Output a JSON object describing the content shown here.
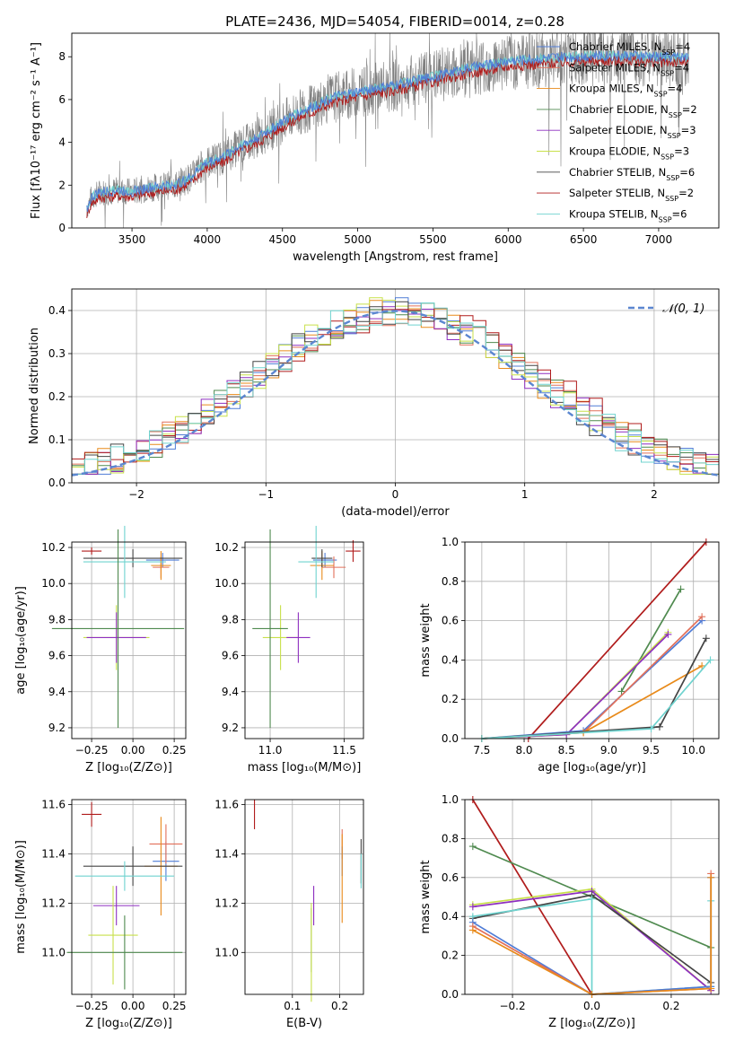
{
  "figure": {
    "title": "PLATE=2436, MJD=54054, FIBERID=0014, z=0.28"
  },
  "colors": {
    "Chabrier MILES": "#4f7cd6",
    "Salpeter MILES": "#e2705a",
    "Kroupa MILES": "#e88a1a",
    "Chabrier ELODIE": "#4f8a4f",
    "Salpeter ELODIE": "#8e2fc0",
    "Kroupa ELODIE": "#c8e04a",
    "Chabrier STELIB": "#444444",
    "Salpeter STELIB": "#b01c1c",
    "Kroupa STELIB": "#6fd3cf",
    "data": "#808080",
    "normal": "#5b86d0"
  },
  "chart_data": [
    {
      "id": "spectrum",
      "type": "line",
      "title": "PLATE=2436, MJD=54054, FIBERID=0014, z=0.28",
      "xlabel": "wavelength [Angstrom, rest frame]",
      "ylabel": "Flux [fλ10⁻¹⁷ erg cm⁻² s⁻¹ A⁻¹]",
      "xlim": [
        3100,
        7400
      ],
      "ylim": [
        0,
        9.1
      ],
      "xticks": [
        3500,
        4000,
        4500,
        5000,
        5500,
        6000,
        6500,
        7000
      ],
      "yticks": [
        0,
        2,
        4,
        6,
        8
      ],
      "legend_position": "top-right",
      "legend": [
        "Chabrier MILES, N_SSP=4",
        "Salpeter MILES, N_SSP=4",
        "Kroupa MILES, N_SSP=4",
        "Chabrier ELODIE, N_SSP=2",
        "Salpeter ELODIE, N_SSP=3",
        "Kroupa ELODIE, N_SSP=3",
        "Chabrier STELIB, N_SSP=6",
        "Salpeter STELIB, N_SSP=2",
        "Kroupa STELIB, N_SSP=6"
      ],
      "model_continuum": [
        [
          3200,
          0.9
        ],
        [
          3230,
          1.4
        ],
        [
          3280,
          1.65
        ],
        [
          3400,
          1.75
        ],
        [
          3500,
          1.7
        ],
        [
          3600,
          1.85
        ],
        [
          3700,
          1.95
        ],
        [
          3800,
          2.05
        ],
        [
          3900,
          2.4
        ],
        [
          3950,
          2.8
        ],
        [
          4000,
          3.05
        ],
        [
          4100,
          3.3
        ],
        [
          4200,
          3.75
        ],
        [
          4300,
          4.1
        ],
        [
          4400,
          4.5
        ],
        [
          4500,
          4.95
        ],
        [
          4600,
          5.35
        ],
        [
          4700,
          5.65
        ],
        [
          4800,
          6.0
        ],
        [
          4900,
          6.2
        ],
        [
          5000,
          6.35
        ],
        [
          5100,
          6.5
        ],
        [
          5200,
          6.6
        ],
        [
          5300,
          6.75
        ],
        [
          5400,
          6.9
        ],
        [
          5500,
          7.05
        ],
        [
          5600,
          7.25
        ],
        [
          5700,
          7.4
        ],
        [
          5800,
          7.55
        ],
        [
          5900,
          7.65
        ],
        [
          6000,
          7.8
        ],
        [
          6200,
          7.9
        ],
        [
          6400,
          8.0
        ],
        [
          6600,
          8.05
        ],
        [
          6800,
          8.05
        ],
        [
          7000,
          8.0
        ],
        [
          7200,
          8.0
        ]
      ]
    },
    {
      "id": "residuals",
      "type": "line",
      "xlabel": "(data-model)/error",
      "ylabel": "Normed distribution",
      "xlim": [
        -2.5,
        2.5
      ],
      "ylim": [
        0,
        0.45
      ],
      "xticks": [
        -2,
        -1,
        0,
        1,
        2
      ],
      "yticks": [
        0.0,
        0.1,
        0.2,
        0.3,
        0.4
      ],
      "grid": true,
      "legend_position": "top-right",
      "legend": [
        "𝒩(0, 1)"
      ],
      "normal": {
        "mu": 0,
        "sigma": 1
      }
    },
    {
      "id": "age-vs-Z",
      "type": "scatter",
      "xlabel": "Z [log₁₀(Z/Z⊙)]",
      "ylabel": "age  [log₁₀(age/yr)]",
      "xlim": [
        -0.37,
        0.32
      ],
      "ylim": [
        9.14,
        10.23
      ],
      "xticks": [
        -0.25,
        0.0,
        0.25
      ],
      "yticks": [
        9.2,
        9.4,
        9.6,
        9.8,
        10.0,
        10.2
      ],
      "grid": true,
      "errorbars": [
        {
          "model": "Salpeter STELIB",
          "x": -0.25,
          "y": 10.18,
          "xerr": 0.06,
          "yerr": 0.02
        },
        {
          "model": "Chabrier MILES",
          "x": 0.18,
          "y": 10.13,
          "xerr": 0.1,
          "yerr": 0.04
        },
        {
          "model": "Salpeter MILES",
          "x": 0.17,
          "y": 10.09,
          "xerr": 0.05,
          "yerr": 0.06
        },
        {
          "model": "Kroupa MILES",
          "x": 0.17,
          "y": 10.1,
          "xerr": 0.06,
          "yerr": 0.08
        },
        {
          "model": "Chabrier STELIB",
          "x": 0.0,
          "y": 10.14,
          "xerr": 0.3,
          "yerr": 0.05
        },
        {
          "model": "Kroupa STELIB",
          "x": -0.05,
          "y": 10.12,
          "xerr": 0.25,
          "yerr": 0.2
        },
        {
          "model": "Kroupa ELODIE",
          "x": -0.1,
          "y": 9.7,
          "xerr": 0.2,
          "yerr": 0.18
        },
        {
          "model": "Salpeter ELODIE",
          "x": -0.1,
          "y": 9.7,
          "xerr": 0.18,
          "yerr": 0.14
        },
        {
          "model": "Chabrier ELODIE",
          "x": -0.09,
          "y": 9.75,
          "xerr": 0.4,
          "yerr": 0.55
        }
      ]
    },
    {
      "id": "age-vs-mass",
      "type": "scatter",
      "xlabel": "mass [log₁₀(M/M⊙)]",
      "xlim": [
        10.83,
        11.63
      ],
      "ylim": [
        9.14,
        10.23
      ],
      "xticks": [
        11.0,
        11.5
      ],
      "yticks": [
        9.2,
        9.4,
        9.6,
        9.8,
        10.0,
        10.2
      ],
      "grid": true,
      "errorbars": [
        {
          "model": "Salpeter STELIB",
          "x": 11.56,
          "y": 10.18,
          "xerr": 0.05,
          "yerr": 0.06
        },
        {
          "model": "Chabrier MILES",
          "x": 11.37,
          "y": 10.13,
          "xerr": 0.08,
          "yerr": 0.04
        },
        {
          "model": "Salpeter MILES",
          "x": 11.43,
          "y": 10.09,
          "xerr": 0.08,
          "yerr": 0.06
        },
        {
          "model": "Kroupa MILES",
          "x": 11.35,
          "y": 10.1,
          "xerr": 0.08,
          "yerr": 0.08
        },
        {
          "model": "Chabrier STELIB",
          "x": 11.35,
          "y": 10.14,
          "xerr": 0.07,
          "yerr": 0.05
        },
        {
          "model": "Kroupa STELIB",
          "x": 11.31,
          "y": 10.12,
          "xerr": 0.12,
          "yerr": 0.2
        },
        {
          "model": "Kroupa ELODIE",
          "x": 11.07,
          "y": 9.7,
          "xerr": 0.12,
          "yerr": 0.18
        },
        {
          "model": "Salpeter ELODIE",
          "x": 11.19,
          "y": 9.7,
          "xerr": 0.08,
          "yerr": 0.14
        },
        {
          "model": "Chabrier ELODIE",
          "x": 11.0,
          "y": 9.75,
          "xerr": 0.12,
          "yerr": 0.55
        }
      ]
    },
    {
      "id": "mass-weight-vs-age",
      "type": "line",
      "xlabel": "age  [log₁₀(age/yr)]",
      "ylabel": "mass weight",
      "xlim": [
        7.3,
        10.3
      ],
      "ylim": [
        0,
        1
      ],
      "xticks": [
        7.5,
        8.0,
        8.5,
        9.0,
        9.5,
        10.0
      ],
      "yticks": [
        0.0,
        0.2,
        0.4,
        0.6,
        0.8,
        1.0
      ],
      "grid": true,
      "series": [
        {
          "model": "Salpeter STELIB",
          "x": [
            8.05,
            10.15
          ],
          "y": [
            0.0,
            1.0
          ]
        },
        {
          "model": "Chabrier ELODIE",
          "x": [
            9.15,
            9.85
          ],
          "y": [
            0.24,
            0.76
          ]
        },
        {
          "model": "Kroupa ELODIE",
          "x": [
            7.5,
            8.5,
            9.7
          ],
          "y": [
            0.0,
            0.02,
            0.54
          ]
        },
        {
          "model": "Salpeter ELODIE",
          "x": [
            7.5,
            8.5,
            9.7
          ],
          "y": [
            0.0,
            0.02,
            0.53
          ]
        },
        {
          "model": "Chabrier MILES",
          "x": [
            7.5,
            8.7,
            10.1
          ],
          "y": [
            0.0,
            0.04,
            0.6
          ]
        },
        {
          "model": "Salpeter MILES",
          "x": [
            7.5,
            8.7,
            10.1
          ],
          "y": [
            0.0,
            0.03,
            0.62
          ]
        },
        {
          "model": "Kroupa MILES",
          "x": [
            7.5,
            8.7,
            10.1
          ],
          "y": [
            0.0,
            0.03,
            0.37
          ]
        },
        {
          "model": "Chabrier STELIB",
          "x": [
            7.5,
            9.6,
            10.15
          ],
          "y": [
            0.0,
            0.06,
            0.51
          ]
        },
        {
          "model": "Kroupa STELIB",
          "x": [
            7.5,
            9.5,
            10.2
          ],
          "y": [
            0.0,
            0.05,
            0.4
          ]
        }
      ]
    },
    {
      "id": "mass-vs-Z",
      "type": "scatter",
      "xlabel": "Z [log₁₀(Z/Z⊙)]",
      "ylabel": "mass [log₁₀(M/M⊙)]",
      "xlim": [
        -0.37,
        0.32
      ],
      "ylim": [
        10.83,
        11.62
      ],
      "xticks": [
        -0.25,
        0.0,
        0.25
      ],
      "yticks": [
        11.0,
        11.2,
        11.4,
        11.6
      ],
      "grid": true,
      "errorbars": [
        {
          "model": "Salpeter STELIB",
          "x": -0.25,
          "y": 11.56,
          "xerr": 0.06,
          "yerr": 0.05
        },
        {
          "model": "Chabrier MILES",
          "x": 0.2,
          "y": 11.37,
          "xerr": 0.08,
          "yerr": 0.08
        },
        {
          "model": "Salpeter MILES",
          "x": 0.2,
          "y": 11.44,
          "xerr": 0.1,
          "yerr": 0.08
        },
        {
          "model": "Kroupa MILES",
          "x": 0.17,
          "y": 11.35,
          "xerr": 0.1,
          "yerr": 0.2
        },
        {
          "model": "Chabrier STELIB",
          "x": 0.0,
          "y": 11.35,
          "xerr": 0.3,
          "yerr": 0.08
        },
        {
          "model": "Kroupa STELIB",
          "x": -0.05,
          "y": 11.31,
          "xerr": 0.3,
          "yerr": 0.06
        },
        {
          "model": "Salpeter ELODIE",
          "x": -0.1,
          "y": 11.19,
          "xerr": 0.14,
          "yerr": 0.08
        },
        {
          "model": "Kroupa ELODIE",
          "x": -0.12,
          "y": 11.07,
          "xerr": 0.15,
          "yerr": 0.2
        },
        {
          "model": "Chabrier ELODIE",
          "x": -0.05,
          "y": 11.0,
          "xerr": 0.35,
          "yerr": 0.15
        }
      ]
    },
    {
      "id": "mass-vs-EBV",
      "type": "scatter",
      "xlabel": "E(B-V)",
      "xlim": [
        0.0,
        0.25
      ],
      "ylim": [
        10.83,
        11.62
      ],
      "xticks": [
        0.1,
        0.2
      ],
      "yticks": [
        11.0,
        11.2,
        11.4,
        11.6
      ],
      "grid": true,
      "errorbars": [
        {
          "model": "Salpeter STELIB",
          "x": 0.02,
          "y": 11.56,
          "xerr": 0.0,
          "yerr": 0.06
        },
        {
          "model": "Salpeter MILES",
          "x": 0.205,
          "y": 11.44,
          "xerr": 0.0,
          "yerr": 0.06
        },
        {
          "model": "Chabrier MILES",
          "x": 0.205,
          "y": 11.37,
          "xerr": 0.0,
          "yerr": 0.06
        },
        {
          "model": "Kroupa MILES",
          "x": 0.205,
          "y": 11.3,
          "xerr": 0.0,
          "yerr": 0.18
        },
        {
          "model": "Chabrier STELIB",
          "x": 0.245,
          "y": 11.37,
          "xerr": 0.0,
          "yerr": 0.09
        },
        {
          "model": "Kroupa STELIB",
          "x": 0.245,
          "y": 11.33,
          "xerr": 0.0,
          "yerr": 0.07
        },
        {
          "model": "Salpeter ELODIE",
          "x": 0.145,
          "y": 11.19,
          "xerr": 0.0,
          "yerr": 0.08
        },
        {
          "model": "Chabrier ELODIE",
          "x": 0.14,
          "y": 11.05,
          "xerr": 0.0,
          "yerr": 0.13
        },
        {
          "model": "Kroupa ELODIE",
          "x": 0.14,
          "y": 11.0,
          "xerr": 0.0,
          "yerr": 0.2
        }
      ]
    },
    {
      "id": "mass-weight-vs-Z",
      "type": "line",
      "xlabel": "Z [log₁₀(Z/Z⊙)]",
      "ylabel": "mass weight",
      "xlim": [
        -0.32,
        0.32
      ],
      "ylim": [
        0,
        1
      ],
      "xticks": [
        -0.2,
        0.0,
        0.2
      ],
      "yticks": [
        0.0,
        0.2,
        0.4,
        0.6,
        0.8,
        1.0
      ],
      "grid": true,
      "series": [
        {
          "model": "Salpeter STELIB",
          "x": [
            -0.3,
            0.0
          ],
          "y": [
            1.0,
            0.0
          ]
        },
        {
          "model": "Chabrier ELODIE",
          "x": [
            -0.3,
            0.3
          ],
          "y": [
            0.76,
            0.24
          ]
        },
        {
          "model": "Kroupa ELODIE",
          "x": [
            -0.3,
            0.0,
            0.3
          ],
          "y": [
            0.46,
            0.54,
            0.02
          ]
        },
        {
          "model": "Salpeter ELODIE",
          "x": [
            -0.3,
            0.0,
            0.3
          ],
          "y": [
            0.45,
            0.53,
            0.02
          ]
        },
        {
          "model": "Chabrier STELIB",
          "x": [
            -0.3,
            0.0,
            0.3
          ],
          "y": [
            0.39,
            0.51,
            0.06
          ]
        },
        {
          "model": "Kroupa STELIB",
          "x": [
            -0.3,
            0.0,
            0.0,
            0.3,
            0.3
          ],
          "y": [
            0.4,
            0.49,
            0.0,
            0.04,
            0.48
          ]
        },
        {
          "model": "Chabrier MILES",
          "x": [
            -0.3,
            0.0,
            0.3,
            0.3
          ],
          "y": [
            0.37,
            0.0,
            0.04,
            0.6
          ]
        },
        {
          "model": "Salpeter MILES",
          "x": [
            -0.3,
            0.0,
            0.3,
            0.3
          ],
          "y": [
            0.35,
            0.0,
            0.03,
            0.62
          ]
        },
        {
          "model": "Kroupa MILES",
          "x": [
            -0.3,
            0.0,
            0.3,
            0.3
          ],
          "y": [
            0.33,
            0.0,
            0.03,
            0.6
          ]
        }
      ]
    }
  ]
}
